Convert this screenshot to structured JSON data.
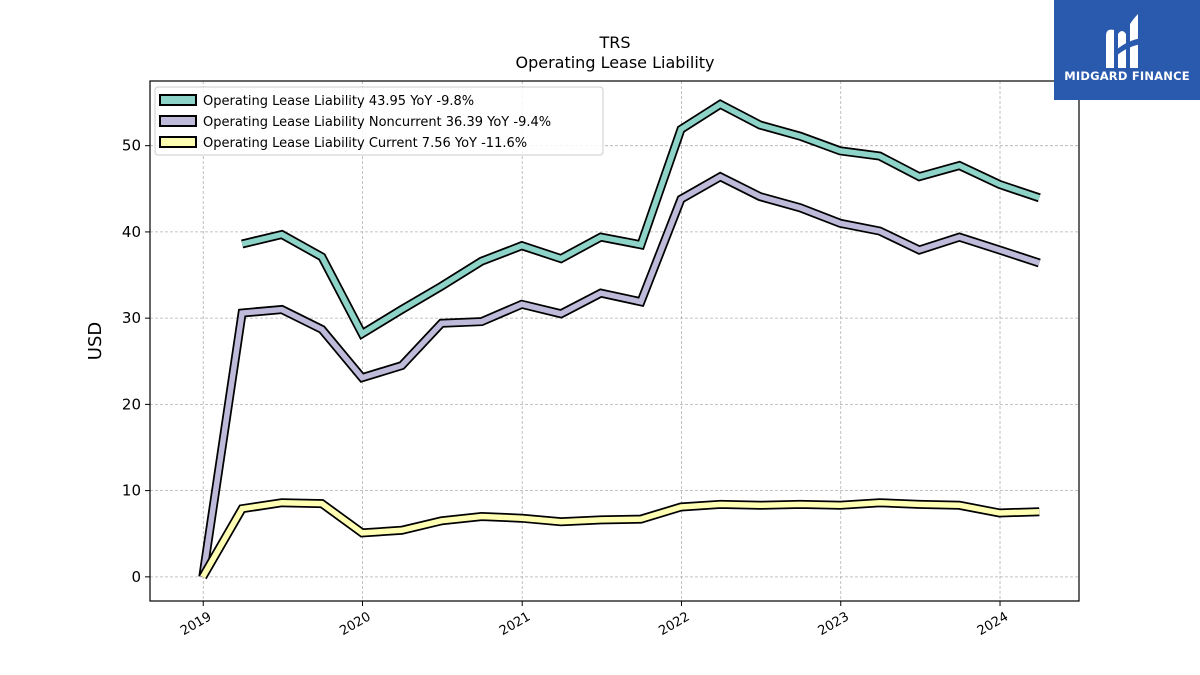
{
  "chart_data": {
    "type": "line",
    "title": "TRS",
    "subtitle": "Operating Lease Liability",
    "ylabel": "USD",
    "xlabel": "",
    "ylim": [
      -2.8,
      57.5
    ],
    "xlim": [
      "2018-09-01",
      "2024-06-30"
    ],
    "yticks": [
      0,
      10,
      20,
      30,
      40,
      50
    ],
    "xticks": [
      "2019",
      "2020",
      "2021",
      "2022",
      "2023",
      "2024"
    ],
    "grid": true,
    "legend_position": "top-left",
    "series": [
      {
        "name": "Operating Lease Liability",
        "legend_label": "Operating Lease Liability  43.95 YoY -9.8%",
        "color": "#8dd3c7",
        "x": [
          "2019-03-31",
          "2019-06-30",
          "2019-09-30",
          "2019-12-31",
          "2020-03-31",
          "2020-06-30",
          "2020-09-30",
          "2020-12-31",
          "2021-03-31",
          "2021-06-30",
          "2021-09-30",
          "2021-12-31",
          "2022-03-31",
          "2022-06-30",
          "2022-09-30",
          "2022-12-31",
          "2023-03-31",
          "2023-06-30",
          "2023-09-30",
          "2023-12-31",
          "2024-03-31"
        ],
        "values": [
          38.6,
          39.7,
          37.1,
          28.2,
          31.0,
          33.7,
          36.6,
          38.4,
          36.9,
          39.4,
          38.5,
          51.9,
          54.8,
          52.4,
          51.1,
          49.4,
          48.8,
          46.4,
          47.7,
          45.5,
          43.95
        ]
      },
      {
        "name": "Operating Lease Liability Noncurrent",
        "legend_label": "Operating Lease Liability Noncurrent  36.39 YoY -9.4%",
        "color": "#bebada",
        "x": [
          "2018-12-31",
          "2019-03-31",
          "2019-06-30",
          "2019-09-30",
          "2019-12-31",
          "2020-03-31",
          "2020-06-30",
          "2020-09-30",
          "2020-12-31",
          "2021-03-31",
          "2021-06-30",
          "2021-09-30",
          "2021-12-31",
          "2022-03-31",
          "2022-06-30",
          "2022-09-30",
          "2022-12-31",
          "2023-03-31",
          "2023-06-30",
          "2023-09-30",
          "2023-12-31",
          "2024-03-31"
        ],
        "values": [
          0.0,
          30.6,
          31.0,
          28.7,
          23.1,
          24.5,
          29.4,
          29.6,
          31.6,
          30.5,
          32.9,
          31.9,
          43.8,
          46.4,
          44.1,
          42.8,
          41.0,
          40.1,
          37.9,
          39.4,
          37.9,
          36.39
        ]
      },
      {
        "name": "Operating Lease Liability Current",
        "legend_label": "Operating Lease Liability Current  7.56 YoY -11.6%",
        "color": "#ffffb3",
        "x": [
          "2018-12-31",
          "2019-03-31",
          "2019-06-30",
          "2019-09-30",
          "2019-12-31",
          "2020-03-31",
          "2020-06-30",
          "2020-09-30",
          "2020-12-31",
          "2021-03-31",
          "2021-06-30",
          "2021-09-30",
          "2021-12-31",
          "2022-03-31",
          "2022-06-30",
          "2022-09-30",
          "2022-12-31",
          "2023-03-31",
          "2023-06-30",
          "2023-09-30",
          "2023-12-31",
          "2024-03-31"
        ],
        "values": [
          0.0,
          7.9,
          8.6,
          8.5,
          5.1,
          5.4,
          6.5,
          7.0,
          6.8,
          6.4,
          6.6,
          6.7,
          8.1,
          8.4,
          8.3,
          8.4,
          8.3,
          8.6,
          8.4,
          8.3,
          7.4,
          7.56
        ]
      }
    ]
  },
  "logo": {
    "text": "MIDGARD FINANCE",
    "icon": "midgard-logo-icon",
    "color": "#2a5aad"
  }
}
